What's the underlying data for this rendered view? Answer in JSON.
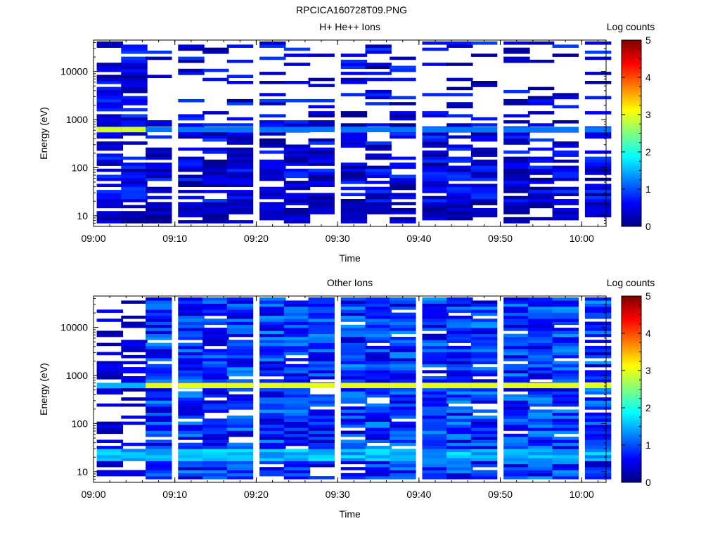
{
  "title": "RPCICA160728T09.PNG",
  "chart_data": [
    {
      "type": "heatmap",
      "title": "H+ He++ Ions",
      "xlabel": "Time",
      "ylabel": "Energy (eV)",
      "x_tick_labels": [
        "09:00",
        "09:10",
        "09:20",
        "09:30",
        "09:40",
        "09:50",
        "10:00"
      ],
      "x_range": [
        "09:00",
        "10:03"
      ],
      "y_scale": "log",
      "y_tick_labels": [
        "10",
        "100",
        "1000",
        "10000"
      ],
      "y_range": [
        6,
        45000
      ],
      "colorbar_label": "Log counts",
      "colorbar_ticks": [
        "0",
        "1",
        "2",
        "3",
        "4",
        "5"
      ],
      "colorbar_range": [
        0,
        5
      ],
      "time_bins": [
        "09:02",
        "09:05",
        "09:08",
        "09:12",
        "09:15",
        "09:18",
        "09:22",
        "09:25",
        "09:28",
        "09:32",
        "09:35",
        "09:38",
        "09:42",
        "09:45",
        "09:48",
        "09:52",
        "09:55",
        "09:58",
        "10:02"
      ],
      "band_energy_eV": 620,
      "band_log_counts": [
        2.9,
        2.9,
        1.2,
        1.2,
        1.2,
        1.2,
        1.2,
        1.2,
        1.2,
        1.2,
        1.2,
        1.2,
        1.2,
        1.2,
        1.2,
        1.2,
        1.2,
        1.2,
        1.2
      ],
      "background_log_counts": "0-1"
    },
    {
      "type": "heatmap",
      "title": "Other Ions",
      "xlabel": "Time",
      "ylabel": "Energy (eV)",
      "x_tick_labels": [
        "09:00",
        "09:10",
        "09:20",
        "09:30",
        "09:40",
        "09:50",
        "10:00"
      ],
      "x_range": [
        "09:00",
        "10:03"
      ],
      "y_scale": "log",
      "y_tick_labels": [
        "10",
        "100",
        "1000",
        "10000"
      ],
      "y_range": [
        6,
        45000
      ],
      "colorbar_label": "Log counts",
      "colorbar_ticks": [
        "0",
        "1",
        "2",
        "3",
        "4",
        "5"
      ],
      "colorbar_range": [
        0,
        5
      ],
      "time_bins": [
        "09:02",
        "09:05",
        "09:08",
        "09:12",
        "09:15",
        "09:18",
        "09:22",
        "09:25",
        "09:28",
        "09:32",
        "09:35",
        "09:38",
        "09:42",
        "09:45",
        "09:48",
        "09:52",
        "09:55",
        "09:58",
        "10:02"
      ],
      "band_energy_eV": 620,
      "band_log_counts": [
        1.5,
        1.5,
        3.0,
        3.0,
        3.0,
        3.0,
        3.0,
        3.0,
        3.0,
        3.0,
        3.0,
        3.0,
        3.0,
        3.0,
        3.0,
        3.0,
        3.0,
        3.0,
        3.0
      ],
      "low_energy_band_eV": 20,
      "background_log_counts": "0.3-1.5"
    }
  ]
}
